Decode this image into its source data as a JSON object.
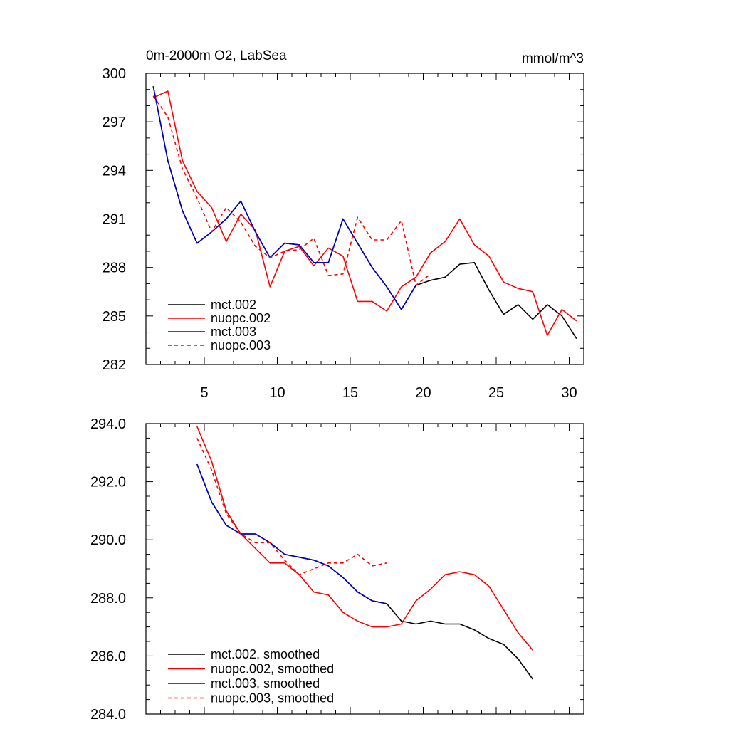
{
  "page": {
    "title_left": "0m-2000m O2, LabSea",
    "title_right": "mmol/m^3"
  },
  "colors": {
    "mct": "#000000",
    "nuopc": "#ff0000",
    "mct003": "#0000cc"
  },
  "chart_data": [
    {
      "type": "line",
      "title": "0m-2000m O2, LabSea",
      "units": "mmol/m^3",
      "xlim": [
        1,
        31
      ],
      "ylim": [
        282,
        300
      ],
      "xticks": [
        5,
        10,
        15,
        20,
        25,
        30
      ],
      "yticks": [
        282,
        285,
        288,
        291,
        294,
        297,
        300
      ],
      "ytick_labels": [
        "282",
        "285",
        "288",
        "291",
        "294",
        "297",
        "300"
      ],
      "legend_position": "bottom-left",
      "series": [
        {
          "name": "mct.002",
          "color": "#000000",
          "dash": false,
          "x": [
            1.5,
            2.5,
            3.5,
            4.5,
            5.5,
            6.5,
            7.5,
            8.5,
            9.5,
            10.5,
            11.5,
            12.5,
            13.5,
            14.5,
            15.5,
            16.5,
            17.5,
            18.5,
            19.5,
            20.5,
            21.5,
            22.5,
            23.5,
            24.5,
            25.5,
            26.5,
            27.5,
            28.5,
            29.5,
            30.5
          ],
          "y": [
            299.2,
            294.6,
            291.5,
            289.5,
            290.2,
            291.0,
            292.1,
            290.2,
            288.6,
            289.5,
            289.4,
            288.3,
            288.3,
            291.0,
            289.5,
            288.0,
            286.8,
            285.4,
            286.9,
            287.2,
            287.4,
            288.2,
            288.3,
            286.6,
            285.1,
            285.7,
            284.8,
            285.7,
            285.0,
            283.6
          ]
        },
        {
          "name": "nuopc.002",
          "color": "#ff0000",
          "dash": false,
          "x": [
            1.5,
            2.5,
            3.5,
            4.5,
            5.5,
            6.5,
            7.5,
            8.5,
            9.5,
            10.5,
            11.5,
            12.5,
            13.5,
            14.5,
            15.5,
            16.5,
            17.5,
            18.5,
            19.5,
            20.5,
            21.5,
            22.5,
            23.5,
            24.5,
            25.5,
            26.5,
            27.5,
            28.5,
            29.5,
            30.5
          ],
          "y": [
            298.5,
            298.9,
            294.6,
            292.7,
            291.7,
            289.6,
            291.3,
            290.3,
            286.8,
            289.0,
            289.3,
            288.1,
            289.2,
            288.7,
            285.9,
            285.9,
            285.3,
            286.8,
            287.4,
            288.9,
            289.6,
            291.0,
            289.4,
            288.7,
            287.1,
            286.7,
            286.5,
            283.8,
            285.4,
            284.7
          ]
        },
        {
          "name": "mct.003",
          "color": "#0000cc",
          "dash": false,
          "x": [
            1.5,
            2.5,
            3.5,
            4.5,
            5.5,
            6.5,
            7.5,
            8.5,
            9.5,
            10.5,
            11.5,
            12.5,
            13.5,
            14.5,
            15.5,
            16.5,
            17.5,
            18.5,
            19.5
          ],
          "y": [
            299.2,
            294.6,
            291.5,
            289.5,
            290.2,
            291.0,
            292.1,
            290.2,
            288.6,
            289.5,
            289.4,
            288.3,
            288.3,
            291.0,
            289.5,
            288.0,
            286.8,
            285.4,
            286.9
          ]
        },
        {
          "name": "nuopc.003",
          "color": "#ff0000",
          "dash": true,
          "x": [
            1.5,
            2.5,
            3.5,
            4.5,
            5.5,
            6.5,
            7.5,
            8.5,
            9.5,
            10.5,
            11.5,
            12.5,
            13.5,
            14.5,
            15.5,
            16.5,
            17.5,
            18.5,
            19.5,
            20.5
          ],
          "y": [
            298.6,
            297.3,
            294.1,
            292.3,
            290.2,
            291.7,
            290.8,
            289.3,
            288.6,
            289.0,
            289.1,
            289.8,
            287.5,
            287.6,
            291.1,
            289.7,
            289.7,
            290.9,
            286.9,
            287.6
          ]
        }
      ]
    },
    {
      "type": "line",
      "xlim": [
        1,
        31
      ],
      "ylim": [
        284,
        294
      ],
      "xticks": [
        5,
        10,
        15,
        20,
        25,
        30
      ],
      "yticks": [
        284,
        286,
        288,
        290,
        292,
        294
      ],
      "ytick_labels": [
        "284.0",
        "286.0",
        "288.0",
        "290.0",
        "292.0",
        "294.0"
      ],
      "legend_position": "bottom-left",
      "series": [
        {
          "name": "mct.002, smoothed",
          "color": "#000000",
          "dash": false,
          "x": [
            4.5,
            5.5,
            6.5,
            7.5,
            8.5,
            9.5,
            10.5,
            11.5,
            12.5,
            13.5,
            14.5,
            15.5,
            16.5,
            17.5,
            18.5,
            19.5,
            20.5,
            21.5,
            22.5,
            23.5,
            24.5,
            25.5,
            26.5,
            27.5
          ],
          "y": [
            292.6,
            291.3,
            290.5,
            290.2,
            290.2,
            289.9,
            289.5,
            289.4,
            289.3,
            289.1,
            288.7,
            288.2,
            287.9,
            287.8,
            287.2,
            287.1,
            287.2,
            287.1,
            287.1,
            286.9,
            286.6,
            286.4,
            285.9,
            285.2
          ]
        },
        {
          "name": "nuopc.002, smoothed",
          "color": "#ff0000",
          "dash": false,
          "x": [
            4.5,
            5.5,
            6.5,
            7.5,
            8.5,
            9.5,
            10.5,
            11.5,
            12.5,
            13.5,
            14.5,
            15.5,
            16.5,
            17.5,
            18.5,
            19.5,
            20.5,
            21.5,
            22.5,
            23.5,
            24.5,
            25.5,
            26.5,
            27.5
          ],
          "y": [
            293.9,
            292.7,
            291.0,
            290.2,
            289.7,
            289.2,
            289.2,
            288.8,
            288.2,
            288.1,
            287.5,
            287.2,
            287.0,
            287.0,
            287.1,
            287.9,
            288.3,
            288.8,
            288.9,
            288.8,
            288.4,
            287.6,
            286.8,
            286.2
          ]
        },
        {
          "name": "mct.003, smoothed",
          "color": "#0000cc",
          "dash": false,
          "x": [
            4.5,
            5.5,
            6.5,
            7.5,
            8.5,
            9.5,
            10.5,
            11.5,
            12.5,
            13.5,
            14.5,
            15.5,
            16.5,
            17.5
          ],
          "y": [
            292.6,
            291.3,
            290.5,
            290.2,
            290.2,
            289.9,
            289.5,
            289.4,
            289.3,
            289.1,
            288.7,
            288.2,
            287.9,
            287.8
          ]
        },
        {
          "name": "nuopc.003, smoothed",
          "color": "#ff0000",
          "dash": true,
          "x": [
            4.5,
            5.5,
            6.5,
            7.5,
            8.5,
            9.5,
            10.5,
            11.5,
            12.5,
            13.5,
            14.5,
            15.5,
            16.5,
            17.5
          ],
          "y": [
            293.5,
            292.4,
            290.9,
            290.2,
            289.9,
            289.9,
            289.3,
            288.8,
            289.0,
            289.2,
            289.2,
            289.5,
            289.1,
            289.2
          ]
        }
      ]
    }
  ]
}
